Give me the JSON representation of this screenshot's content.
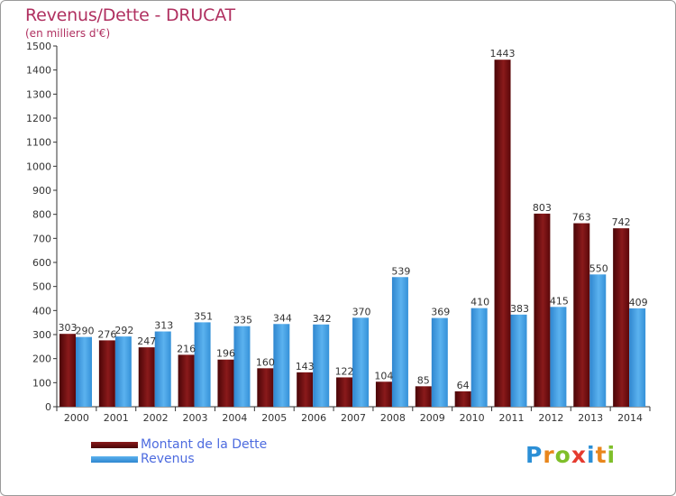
{
  "title": "Revenus/Dette - DRUCAT",
  "subtitle": "(en milliers d'€)",
  "brand": {
    "text": "Proxiti",
    "letters": [
      "P",
      "r",
      "o",
      "x",
      "i",
      "t",
      "i"
    ],
    "colors": [
      "#2b8fd6",
      "#e8861c",
      "#7fbf2a",
      "#e53b2f",
      "#2b8fd6",
      "#e8861c",
      "#7fbf2a"
    ]
  },
  "colors": {
    "dette": "#7a0f10",
    "revenus": "#3b9ae0",
    "title": "#b03060",
    "legend_text": "#4d6bdf"
  },
  "chart_data": {
    "type": "bar",
    "categories": [
      "2000",
      "2001",
      "2002",
      "2003",
      "2004",
      "2005",
      "2006",
      "2007",
      "2008",
      "2009",
      "2010",
      "2011",
      "2012",
      "2013",
      "2014"
    ],
    "series": [
      {
        "name": "Montant de la Dette",
        "values": [
          303,
          276,
          247,
          216,
          196,
          160,
          143,
          122,
          104,
          85,
          64,
          1443,
          803,
          763,
          742
        ]
      },
      {
        "name": "Revenus",
        "values": [
          290,
          292,
          313,
          351,
          335,
          344,
          342,
          370,
          539,
          369,
          410,
          383,
          415,
          550,
          409
        ]
      }
    ],
    "ylim": [
      0,
      1500
    ],
    "yticks": [
      0,
      100,
      200,
      300,
      400,
      500,
      600,
      700,
      800,
      900,
      1000,
      1100,
      1200,
      1300,
      1400,
      1500
    ],
    "grid": false,
    "legend_position": "bottom-left"
  }
}
